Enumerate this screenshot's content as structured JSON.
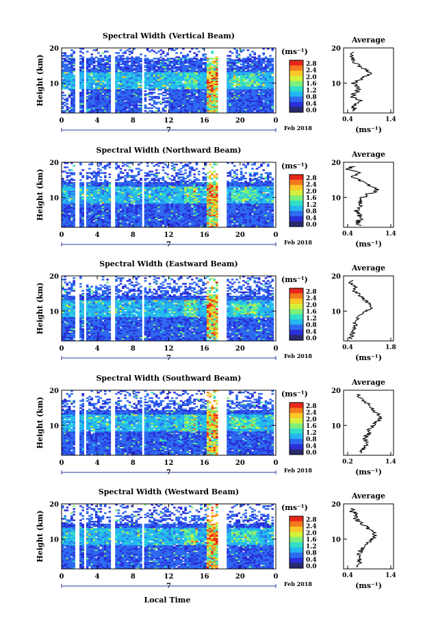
{
  "unit_label": "(ms⁻¹)",
  "date_label": "Feb 2018",
  "day_label": "7",
  "xlabel": "Local Time",
  "average_title": "Average",
  "colors": {
    "cbar_stops": [
      "#2a2a6e",
      "#2b2fd8",
      "#2e6af0",
      "#25b6f0",
      "#32e0c8",
      "#7cf07a",
      "#d6f03c",
      "#f8c828",
      "#f57a1e",
      "#e8261a"
    ],
    "white": "#ffffff"
  },
  "chart_data": [
    {
      "type": "heatmap",
      "title": "Spectral Width (Vertical Beam)",
      "ylabel": "Height (km)",
      "x_ticks": [
        "0",
        "4",
        "8",
        "12",
        "16",
        "20",
        "0"
      ],
      "y_ticks": [
        "20",
        "10"
      ],
      "xlim": [
        0,
        24
      ],
      "ylim": [
        1.5,
        20
      ],
      "colorbar_ticks": [
        "2.8",
        "2.4",
        "2.0",
        "1.6",
        "1.2",
        "0.8",
        "0.4",
        "0.0"
      ],
      "avg_x_ticks": [
        "0.4",
        "1.4"
      ],
      "avg_y_ticks": [
        "20",
        "10"
      ],
      "avg_xlim": [
        0.4,
        1.4
      ],
      "avg_profile": {
        "height": [
          2,
          3,
          4,
          5,
          6,
          7,
          8,
          9,
          10,
          11,
          12,
          13,
          14,
          15,
          16,
          17,
          18,
          19
        ],
        "value": [
          0.55,
          0.62,
          0.6,
          0.72,
          0.58,
          0.62,
          0.7,
          0.68,
          0.6,
          0.75,
          0.85,
          0.95,
          0.8,
          0.7,
          0.62,
          0.6,
          0.55,
          0.6
        ]
      }
    },
    {
      "type": "heatmap",
      "title": "Spectral Width (Northward Beam)",
      "ylabel": "Height (km)",
      "x_ticks": [
        "0",
        "4",
        "8",
        "12",
        "16",
        "20",
        "0"
      ],
      "y_ticks": [
        "20",
        "10"
      ],
      "xlim": [
        0,
        24
      ],
      "ylim": [
        1.5,
        20
      ],
      "colorbar_ticks": [
        "2.8",
        "2.4",
        "2.0",
        "1.6",
        "1.2",
        "0.8",
        "0.4",
        "0.0"
      ],
      "avg_x_ticks": [
        "0.4",
        "1.4"
      ],
      "avg_y_ticks": [
        "20",
        "10"
      ],
      "avg_xlim": [
        0.4,
        1.4
      ],
      "avg_profile": {
        "height": [
          2,
          3,
          4,
          5,
          6,
          7,
          8,
          9,
          10,
          11,
          12,
          13,
          14,
          15,
          16,
          17,
          18,
          19
        ],
        "value": [
          0.7,
          0.68,
          0.75,
          0.72,
          0.65,
          0.7,
          0.78,
          0.72,
          0.8,
          0.9,
          1.1,
          0.95,
          0.85,
          0.7,
          0.55,
          0.75,
          0.5,
          0.6
        ]
      }
    },
    {
      "type": "heatmap",
      "title": "Spectral Width (Eastward Beam)",
      "ylabel": "Height (km)",
      "x_ticks": [
        "0",
        "4",
        "8",
        "12",
        "16",
        "20",
        "0"
      ],
      "y_ticks": [
        "20",
        "10"
      ],
      "xlim": [
        0,
        24
      ],
      "ylim": [
        1.5,
        20
      ],
      "colorbar_ticks": [
        "2.8",
        "2.4",
        "2.0",
        "1.6",
        "1.2",
        "0.8",
        "0.4",
        "0.0"
      ],
      "avg_x_ticks": [
        "0.4",
        "1.8"
      ],
      "avg_y_ticks": [
        "20",
        "10"
      ],
      "avg_xlim": [
        0.4,
        1.8
      ],
      "avg_profile": {
        "height": [
          2,
          3,
          4,
          5,
          6,
          7,
          8,
          9,
          10,
          11,
          12,
          13,
          14,
          15,
          16,
          17,
          18,
          19
        ],
        "value": [
          0.6,
          0.62,
          0.66,
          0.7,
          0.75,
          0.72,
          0.8,
          0.9,
          1.05,
          1.2,
          1.15,
          1.0,
          0.9,
          0.8,
          0.65,
          0.75,
          0.6,
          0.7
        ]
      }
    },
    {
      "type": "heatmap",
      "title": "Spectral Width (Southward Beam)",
      "ylabel": "Height (km)",
      "x_ticks": [
        "0",
        "4",
        "8",
        "12",
        "16",
        "20",
        "0"
      ],
      "y_ticks": [
        "20",
        "10"
      ],
      "xlim": [
        0,
        24
      ],
      "ylim": [
        1.5,
        20
      ],
      "colorbar_ticks": [
        "2.8",
        "2.4",
        "2.0",
        "1.6",
        "1.2",
        "0.8",
        "0.4",
        "0.0"
      ],
      "avg_x_ticks": [
        "0.2",
        "1.4"
      ],
      "avg_y_ticks": [
        "20",
        "10"
      ],
      "avg_xlim": [
        0.2,
        1.4
      ],
      "avg_profile": {
        "height": [
          2,
          3,
          4,
          5,
          6,
          7,
          8,
          9,
          10,
          11,
          12,
          13,
          14,
          15,
          16,
          17,
          18,
          19
        ],
        "value": [
          0.6,
          0.65,
          0.7,
          0.78,
          0.7,
          0.75,
          0.85,
          0.8,
          0.9,
          1.0,
          1.1,
          1.05,
          0.95,
          0.85,
          0.8,
          0.7,
          0.6,
          0.55
        ]
      }
    },
    {
      "type": "heatmap",
      "title": "Spectral Width (Westward Beam)",
      "ylabel": "Height (km)",
      "x_ticks": [
        "0",
        "4",
        "8",
        "12",
        "16",
        "20",
        "0"
      ],
      "y_ticks": [
        "20",
        "10"
      ],
      "xlim": [
        0,
        24
      ],
      "ylim": [
        1.5,
        20
      ],
      "colorbar_ticks": [
        "2.8",
        "2.4",
        "2.0",
        "1.6",
        "1.2",
        "0.8",
        "0.4",
        "0.0"
      ],
      "avg_x_ticks": [
        "0.4",
        "1.4"
      ],
      "avg_y_ticks": [
        "20",
        "10"
      ],
      "avg_xlim": [
        0.4,
        1.4
      ],
      "avg_profile": {
        "height": [
          2,
          3,
          4,
          5,
          6,
          7,
          8,
          9,
          10,
          11,
          12,
          13,
          14,
          15,
          16,
          17,
          18,
          19
        ],
        "value": [
          0.65,
          0.7,
          0.72,
          0.75,
          0.7,
          0.78,
          0.82,
          0.9,
          1.0,
          1.05,
          1.0,
          0.9,
          0.8,
          0.7,
          0.6,
          0.7,
          0.55,
          0.6
        ]
      }
    }
  ]
}
